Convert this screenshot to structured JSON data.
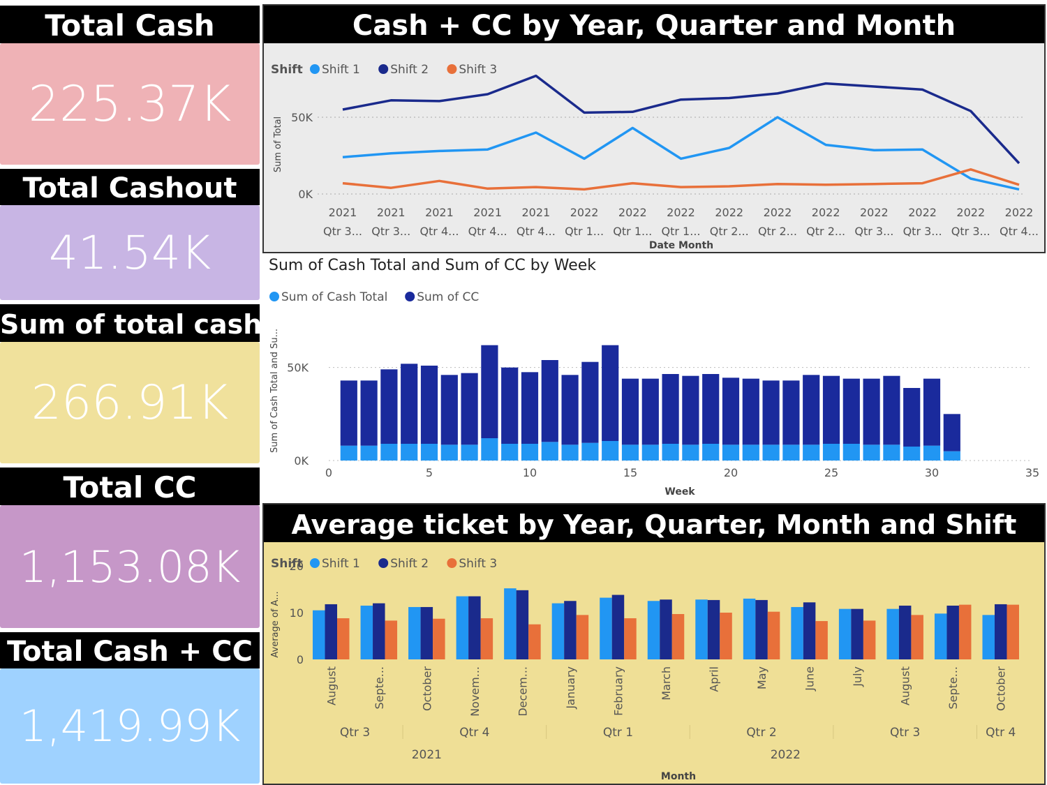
{
  "kpis": [
    {
      "title": "Total Cash",
      "value": "225.37K",
      "color": "#efb2b6"
    },
    {
      "title": "Total Cashout",
      "value": "41.54K",
      "color": "#c8b5e4"
    },
    {
      "title": "Sum of total cash",
      "value": "266.91K",
      "color": "#f0e19c"
    },
    {
      "title": "Total CC",
      "value": "1,153.08K",
      "color": "#c697c8"
    },
    {
      "title": "Total Cash + CC",
      "value": "1,419.99K",
      "color": "#9fd2ff"
    }
  ],
  "line_panel": {
    "title": "Cash + CC by Year, Quarter and Month",
    "background": "#ebebeb"
  },
  "bar_panel": {
    "title": "Sum of Cash Total and Sum of CC by Week"
  },
  "avg_panel": {
    "title": "Average ticket by Year, Quarter, Month and Shift",
    "background": "#efdf96"
  },
  "colors": {
    "shift1": "#2196f3",
    "shift2": "#1a2a8c",
    "shift3": "#e8703a",
    "cash": "#2196f3",
    "cc": "#1a2a9c"
  },
  "chart_data": [
    {
      "type": "line",
      "legend_title": "Shift",
      "legend_position": "top-left",
      "xlabel": "Date Month",
      "ylabel": "Sum of Total",
      "x_year_labels": [
        "2021",
        "2021",
        "2021",
        "2021",
        "2021",
        "2022",
        "2022",
        "2022",
        "2022",
        "2022",
        "2022",
        "2022",
        "2022",
        "2022",
        "2022"
      ],
      "x_quarter_labels": [
        "Qtr 3...",
        "Qtr 3...",
        "Qtr 4...",
        "Qtr 4...",
        "Qtr 4...",
        "Qtr 1...",
        "Qtr 1...",
        "Qtr 1...",
        "Qtr 2...",
        "Qtr 2...",
        "Qtr 2...",
        "Qtr 3...",
        "Qtr 3...",
        "Qtr 3...",
        "Qtr 4..."
      ],
      "y_ticks": [
        "50K",
        "0K"
      ],
      "y_tick_values": [
        50000,
        0
      ],
      "ylim": [
        0,
        80000
      ],
      "grid": true,
      "series": [
        {
          "name": "Shift 1",
          "values": [
            24000,
            26500,
            28000,
            29000,
            40000,
            23000,
            43000,
            23000,
            30000,
            50000,
            32000,
            28500,
            29000,
            10000,
            3000
          ]
        },
        {
          "name": "Shift 2",
          "values": [
            55000,
            61000,
            60500,
            65000,
            77000,
            53000,
            53500,
            61500,
            62500,
            65500,
            72000,
            70000,
            68000,
            54000,
            20000
          ]
        },
        {
          "name": "Shift 3",
          "values": [
            7000,
            4000,
            8500,
            3500,
            4500,
            3000,
            7000,
            4500,
            5000,
            6500,
            6000,
            6500,
            7000,
            16000,
            6000
          ]
        }
      ]
    },
    {
      "type": "bar",
      "stacked": true,
      "legend_position": "top-left",
      "xlabel": "Week",
      "ylabel": "Sum of Cash Total and Su...",
      "x_ticks": [
        0,
        5,
        10,
        15,
        20,
        25,
        30,
        35
      ],
      "y_ticks": [
        "50K",
        "0K"
      ],
      "y_tick_values": [
        50000,
        0
      ],
      "xlim": [
        0,
        35
      ],
      "ylim": [
        0,
        72000
      ],
      "x": [
        1,
        2,
        3,
        4,
        5,
        6,
        7,
        8,
        9,
        10,
        11,
        12,
        13,
        14,
        15,
        16,
        17,
        18,
        19,
        20,
        21,
        22,
        23,
        24,
        25,
        26,
        27,
        28,
        29,
        30,
        31
      ],
      "series": [
        {
          "name": "Sum of Cash Total",
          "values": [
            8000,
            8000,
            9000,
            9000,
            9000,
            8500,
            8500,
            12000,
            9000,
            9000,
            10000,
            8500,
            9500,
            10500,
            8500,
            8500,
            9000,
            8500,
            9000,
            8500,
            8500,
            8500,
            8500,
            8500,
            9000,
            9000,
            8500,
            8500,
            7500,
            8000,
            5000
          ]
        },
        {
          "name": "Sum of CC",
          "values": [
            35000,
            35000,
            40000,
            43000,
            42000,
            37500,
            38500,
            50000,
            41000,
            38500,
            44000,
            37500,
            43500,
            51500,
            35500,
            35500,
            37500,
            37000,
            37500,
            36000,
            35500,
            34500,
            34500,
            37500,
            36500,
            35000,
            35500,
            37000,
            31500,
            36000,
            20000
          ]
        }
      ]
    },
    {
      "type": "bar",
      "grouped": true,
      "legend_title": "Shift",
      "legend_position": "top-left",
      "xlabel": "Month",
      "ylabel": "Average of A...",
      "y_ticks": [
        "20",
        "10",
        "0"
      ],
      "y_tick_values": [
        20,
        10,
        0
      ],
      "ylim": [
        0,
        20
      ],
      "categories": [
        "August",
        "Septe...",
        "October",
        "Novem...",
        "Decem...",
        "January",
        "February",
        "March",
        "April",
        "May",
        "June",
        "July",
        "August",
        "Septe...",
        "October"
      ],
      "quarters": [
        {
          "label": "Qtr 3",
          "start": 0,
          "end": 1
        },
        {
          "label": "Qtr 4",
          "start": 2,
          "end": 4
        },
        {
          "label": "Qtr 1",
          "start": 5,
          "end": 7
        },
        {
          "label": "Qtr 2",
          "start": 8,
          "end": 10
        },
        {
          "label": "Qtr 3",
          "start": 11,
          "end": 13
        },
        {
          "label": "Qtr 4",
          "start": 14,
          "end": 14
        }
      ],
      "years": [
        {
          "label": "2021",
          "start": 0,
          "end": 4
        },
        {
          "label": "2022",
          "start": 5,
          "end": 14
        }
      ],
      "series": [
        {
          "name": "Shift 1",
          "values": [
            10.5,
            11.5,
            11.2,
            13.5,
            15.2,
            12.0,
            13.2,
            12.5,
            12.8,
            13.0,
            11.2,
            10.8,
            10.8,
            9.8,
            9.5
          ]
        },
        {
          "name": "Shift 2",
          "values": [
            11.8,
            12.0,
            11.2,
            13.5,
            14.8,
            12.5,
            13.8,
            12.8,
            12.7,
            12.7,
            12.2,
            10.8,
            11.5,
            11.5,
            11.8
          ]
        },
        {
          "name": "Shift 3",
          "values": [
            8.8,
            8.3,
            8.7,
            8.8,
            7.5,
            9.5,
            8.8,
            9.7,
            10.0,
            10.2,
            8.2,
            8.3,
            9.5,
            11.7,
            11.7
          ]
        }
      ]
    }
  ]
}
